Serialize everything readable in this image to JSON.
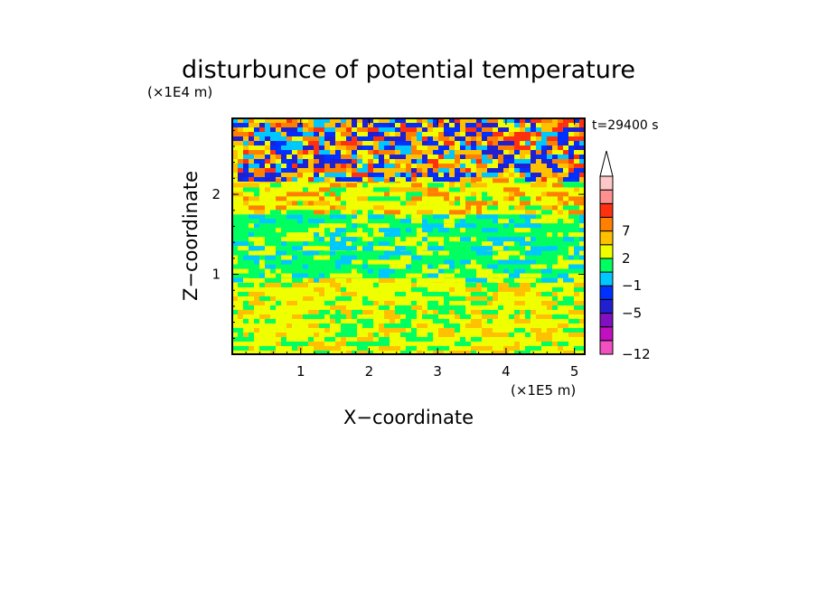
{
  "chart_data": {
    "type": "heatmap",
    "title": "disturbunce of potential temperature",
    "time_label": "t=29400 s",
    "xlabel": "X−coordinate",
    "ylabel": "Z−coordinate",
    "x_unit": "(×1E5 m)",
    "y_unit": "(×1E4 m)",
    "xlim": [
      0,
      5.15
    ],
    "ylim": [
      0,
      2.95
    ],
    "x_ticks": [
      {
        "value": 1,
        "label": "1"
      },
      {
        "value": 2,
        "label": "2"
      },
      {
        "value": 3,
        "label": "3"
      },
      {
        "value": 4,
        "label": "4"
      },
      {
        "value": 5,
        "label": "5"
      }
    ],
    "y_ticks": [
      {
        "value": 1,
        "label": "1"
      },
      {
        "value": 2,
        "label": "2"
      }
    ],
    "colorbar": {
      "levels": [
        {
          "color": "#f050c0",
          "label": "−12"
        },
        {
          "color": "#c010c0",
          "label": ""
        },
        {
          "color": "#8010c0",
          "label": ""
        },
        {
          "color": "#2020d0",
          "label": "−5"
        },
        {
          "color": "#0030ff",
          "label": ""
        },
        {
          "color": "#00c8ff",
          "label": "−1"
        },
        {
          "color": "#00ff60",
          "label": ""
        },
        {
          "color": "#f0ff00",
          "label": "2"
        },
        {
          "color": "#ffc000",
          "label": ""
        },
        {
          "color": "#ff8000",
          "label": "7"
        },
        {
          "color": "#ff3010",
          "label": ""
        },
        {
          "color": "#ff9090",
          "label": ""
        },
        {
          "color": "#ffc8c8",
          "label": ""
        }
      ],
      "extend": "max"
    },
    "bands": [
      {
        "z": [
          0,
          0.95
        ],
        "dominant": "#f0ff00",
        "secondary": [
          "#ffc000",
          "#00ff60"
        ]
      },
      {
        "z": [
          0.95,
          1.35
        ],
        "dominant": "#00ff60",
        "secondary": [
          "#00c8ff",
          "#f0ff00"
        ]
      },
      {
        "z": [
          1.35,
          1.75
        ],
        "dominant": "#00ff60",
        "secondary": [
          "#f0ff00",
          "#00c8ff"
        ]
      },
      {
        "z": [
          1.75,
          2.2
        ],
        "dominant": "#f0ff00",
        "secondary": [
          "#ffc000",
          "#ff8000",
          "#00ff60"
        ]
      },
      {
        "z": [
          2.2,
          2.95
        ],
        "dominant": "#ffc000",
        "secondary": [
          "#0030ff",
          "#2020d0",
          "#ff8000",
          "#ff3010",
          "#00c8ff",
          "#f0ff00"
        ]
      }
    ]
  }
}
